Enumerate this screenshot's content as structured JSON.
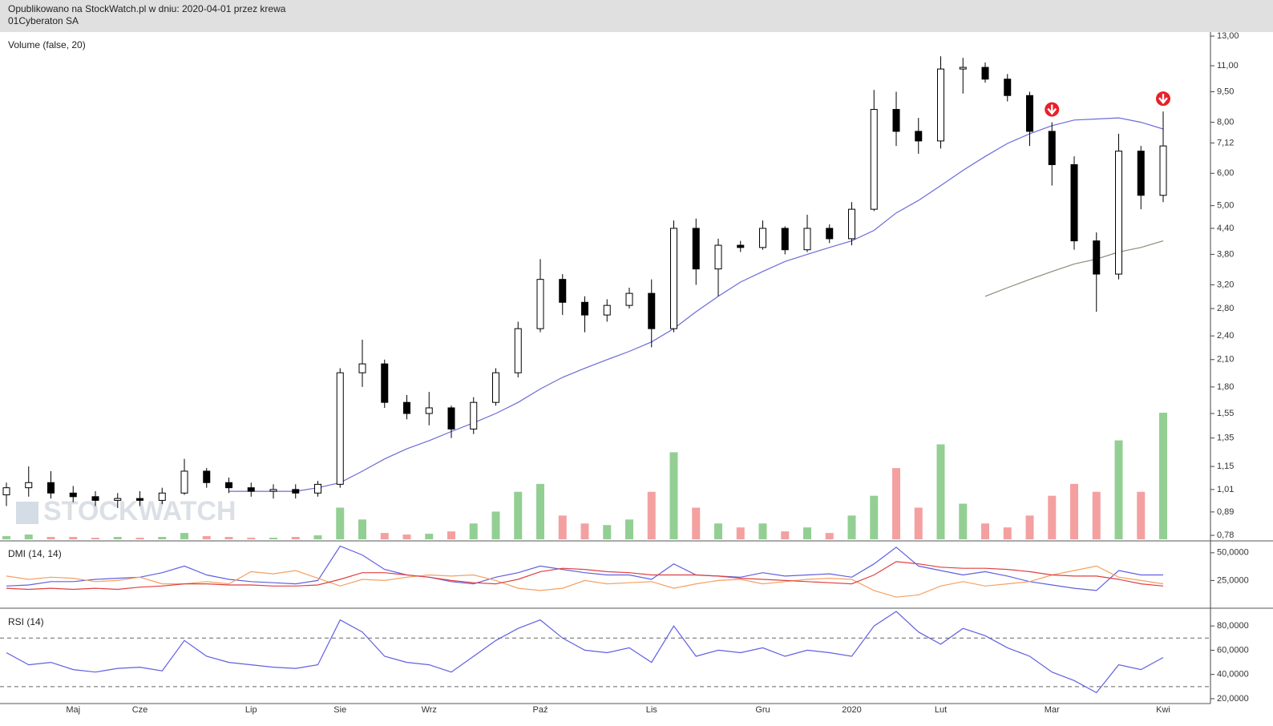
{
  "header": {
    "published": "Opublikowano na StockWatch.pl w dniu: 2020-04-01 przez krewa",
    "instrument": "01Cyberaton SA",
    "watermark": "STOCKWATCH"
  },
  "chart_data": [
    {
      "type": "candlestick",
      "title": "Volume (false, 20)",
      "categories": [
        null,
        null,
        null,
        "Maj",
        null,
        null,
        "Cze",
        null,
        null,
        null,
        null,
        "Lip",
        null,
        null,
        null,
        "Sie",
        null,
        null,
        null,
        "Wrz",
        null,
        null,
        null,
        null,
        "Paź",
        null,
        null,
        null,
        null,
        "Lis",
        null,
        null,
        null,
        null,
        "Gru",
        null,
        null,
        null,
        "2020",
        null,
        null,
        null,
        "Lut",
        null,
        null,
        null,
        null,
        "Mar",
        null,
        null,
        null,
        null,
        "Kwi"
      ],
      "open": [
        0.98,
        1.02,
        1.05,
        0.99,
        0.97,
        0.95,
        0.96,
        0.95,
        0.99,
        1.12,
        1.05,
        1.02,
        1.0,
        1.01,
        0.99,
        1.04,
        1.95,
        2.05,
        1.65,
        1.55,
        1.6,
        1.42,
        1.65,
        1.95,
        2.5,
        3.3,
        2.9,
        2.7,
        2.85,
        3.05,
        2.5,
        4.4,
        3.5,
        4.0,
        3.95,
        4.4,
        3.9,
        4.4,
        4.15,
        4.9,
        8.6,
        7.6,
        7.2,
        10.8,
        10.9,
        10.2,
        9.3,
        7.6,
        6.3,
        4.1,
        3.4,
        6.8,
        5.3
      ],
      "high": [
        1.05,
        1.15,
        1.12,
        1.03,
        1.0,
        0.99,
        1.0,
        1.02,
        1.2,
        1.14,
        1.08,
        1.05,
        1.04,
        1.04,
        1.06,
        2.0,
        2.35,
        2.1,
        1.72,
        1.75,
        1.62,
        1.7,
        2.0,
        2.6,
        3.7,
        3.4,
        3.0,
        2.95,
        3.15,
        3.3,
        4.6,
        4.65,
        4.15,
        4.1,
        4.6,
        4.45,
        4.75,
        4.5,
        5.1,
        9.6,
        9.5,
        8.2,
        11.6,
        11.5,
        11.2,
        10.5,
        9.5,
        8.0,
        6.6,
        4.3,
        7.5,
        7.0,
        8.5
      ],
      "low": [
        0.92,
        0.97,
        0.96,
        0.94,
        0.92,
        0.91,
        0.92,
        0.93,
        0.98,
        1.02,
        0.99,
        0.97,
        0.96,
        0.96,
        0.97,
        1.02,
        1.8,
        1.6,
        1.5,
        1.45,
        1.35,
        1.38,
        1.62,
        1.9,
        2.45,
        2.7,
        2.45,
        2.6,
        2.8,
        2.25,
        2.45,
        3.2,
        3.0,
        3.85,
        3.9,
        3.8,
        3.85,
        4.05,
        4.0,
        4.85,
        7.0,
        6.7,
        6.9,
        9.4,
        10.0,
        9.0,
        7.0,
        5.6,
        3.9,
        2.75,
        3.3,
        4.9,
        5.1
      ],
      "close": [
        1.02,
        1.05,
        0.99,
        0.97,
        0.95,
        0.96,
        0.95,
        0.99,
        1.12,
        1.05,
        1.02,
        1.0,
        1.01,
        0.99,
        1.04,
        1.95,
        2.05,
        1.65,
        1.55,
        1.6,
        1.42,
        1.65,
        1.95,
        2.5,
        3.3,
        2.9,
        2.7,
        2.85,
        3.05,
        2.5,
        4.4,
        3.5,
        4.0,
        3.95,
        4.4,
        3.9,
        4.4,
        4.15,
        4.9,
        8.6,
        7.6,
        7.2,
        10.8,
        10.9,
        10.2,
        9.3,
        7.6,
        6.3,
        4.1,
        3.4,
        6.8,
        5.3,
        7.0
      ],
      "up_color": "#ffffff",
      "down_color": "#000000",
      "volume": {
        "values": [
          4,
          6,
          3,
          3,
          2,
          3,
          2,
          3,
          8,
          4,
          3,
          2,
          2,
          3,
          5,
          40,
          25,
          8,
          6,
          7,
          10,
          20,
          35,
          60,
          70,
          30,
          20,
          18,
          25,
          60,
          110,
          40,
          20,
          15,
          20,
          10,
          15,
          8,
          30,
          55,
          90,
          40,
          120,
          45,
          20,
          15,
          30,
          55,
          70,
          60,
          125,
          60,
          160
        ],
        "up_color": "#93cf93",
        "down_color": "#f4a0a0"
      },
      "overlays": [
        {
          "color": "#6b6bd9",
          "values": [
            null,
            null,
            null,
            null,
            null,
            null,
            null,
            null,
            null,
            null,
            1.0,
            1.0,
            1.0,
            1.0,
            1.02,
            1.05,
            1.12,
            1.2,
            1.27,
            1.33,
            1.4,
            1.47,
            1.55,
            1.65,
            1.78,
            1.9,
            2.0,
            2.1,
            2.2,
            2.32,
            2.5,
            2.75,
            3.0,
            3.25,
            3.45,
            3.65,
            3.8,
            3.95,
            4.1,
            4.35,
            4.8,
            5.15,
            5.6,
            6.1,
            6.6,
            7.1,
            7.5,
            7.85,
            8.1,
            8.15,
            8.2,
            8.0,
            7.7
          ]
        },
        {
          "color": "#8a8a7a",
          "values": [
            null,
            null,
            null,
            null,
            null,
            null,
            null,
            null,
            null,
            null,
            null,
            null,
            null,
            null,
            null,
            null,
            null,
            null,
            null,
            null,
            null,
            null,
            null,
            null,
            null,
            null,
            null,
            null,
            null,
            null,
            null,
            null,
            null,
            null,
            null,
            null,
            null,
            null,
            null,
            null,
            null,
            null,
            null,
            null,
            3.0,
            3.15,
            3.3,
            3.45,
            3.6,
            3.7,
            3.85,
            3.95,
            4.1
          ]
        }
      ],
      "signals": {
        "x_index": [
          47,
          52
        ],
        "color": "#e8202a"
      },
      "log_scale": true,
      "ylim": [
        0.756,
        13.3
      ],
      "yticks": [
        {
          "value": 13,
          "label": "13,00"
        },
        {
          "value": 11,
          "label": "11,00"
        },
        {
          "value": 9.5,
          "label": "9,50"
        },
        {
          "value": 8,
          "label": "8,00"
        },
        {
          "value": 7.12,
          "label": "7,12"
        },
        {
          "value": 6,
          "label": "6,00"
        },
        {
          "value": 5,
          "label": "5,00"
        },
        {
          "value": 4.4,
          "label": "4,40"
        },
        {
          "value": 3.8,
          "label": "3,80"
        },
        {
          "value": 3.2,
          "label": "3,20"
        },
        {
          "value": 2.8,
          "label": "2,80"
        },
        {
          "value": 2.4,
          "label": "2,40"
        },
        {
          "value": 2.1,
          "label": "2,10"
        },
        {
          "value": 1.8,
          "label": "1,80"
        },
        {
          "value": 1.55,
          "label": "1,55"
        },
        {
          "value": 1.35,
          "label": "1,35"
        },
        {
          "value": 1.15,
          "label": "1,15"
        },
        {
          "value": 1.01,
          "label": "1,01"
        },
        {
          "value": 0.89,
          "label": "0,89"
        },
        {
          "value": 0.78,
          "label": "0,78"
        }
      ]
    },
    {
      "type": "line",
      "title": "DMI (14, 14)",
      "series": [
        {
          "color": "#6060e0",
          "values": [
            20,
            21,
            24,
            24,
            26,
            27,
            28,
            32,
            38,
            30,
            26,
            24,
            23,
            22,
            25,
            56,
            48,
            35,
            30,
            28,
            24,
            22,
            28,
            32,
            38,
            35,
            32,
            30,
            30,
            26,
            40,
            30,
            29,
            28,
            32,
            29,
            30,
            31,
            28,
            40,
            55,
            38,
            34,
            30,
            33,
            29,
            24,
            21,
            18,
            16,
            34,
            30,
            30
          ]
        },
        {
          "color": "#f5a060",
          "values": [
            29,
            26,
            28,
            27,
            24,
            25,
            28,
            22,
            22,
            24,
            22,
            33,
            31,
            34,
            27,
            20,
            26,
            25,
            28,
            30,
            29,
            30,
            25,
            18,
            16,
            18,
            25,
            22,
            23,
            24,
            18,
            22,
            25,
            26,
            22,
            24,
            26,
            27,
            26,
            16,
            10,
            12,
            20,
            24,
            20,
            22,
            24,
            30,
            34,
            38,
            28,
            25,
            22
          ]
        },
        {
          "color": "#e04040",
          "values": [
            18,
            17,
            18,
            17,
            18,
            17,
            19,
            20,
            22,
            22,
            21,
            21,
            20,
            20,
            21,
            26,
            32,
            32,
            30,
            28,
            25,
            23,
            22,
            26,
            33,
            36,
            35,
            33,
            32,
            30,
            30,
            30,
            29,
            27,
            26,
            25,
            24,
            23,
            22,
            30,
            42,
            40,
            37,
            36,
            36,
            35,
            33,
            30,
            29,
            29,
            26,
            22,
            20
          ]
        }
      ],
      "ylim": [
        0,
        60
      ],
      "yticks": [
        {
          "value": 50,
          "label": "50,0000"
        },
        {
          "value": 25,
          "label": "25,0000"
        }
      ]
    },
    {
      "type": "line",
      "title": "RSI (14)",
      "series": [
        {
          "color": "#6060e0",
          "values": [
            58,
            48,
            50,
            44,
            42,
            45,
            46,
            43,
            68,
            55,
            50,
            48,
            46,
            45,
            48,
            85,
            75,
            55,
            50,
            48,
            42,
            55,
            68,
            78,
            85,
            70,
            60,
            58,
            62,
            50,
            80,
            55,
            60,
            58,
            62,
            55,
            60,
            58,
            55,
            80,
            92,
            75,
            65,
            78,
            72,
            62,
            55,
            42,
            35,
            25,
            48,
            44,
            54
          ]
        }
      ],
      "hlines": [
        70,
        30
      ],
      "ylim": [
        16,
        94
      ],
      "yticks": [
        {
          "value": 80,
          "label": "80,0000"
        },
        {
          "value": 60,
          "label": "60,0000"
        },
        {
          "value": 40,
          "label": "40,0000"
        },
        {
          "value": 20,
          "label": "20,0000"
        }
      ]
    }
  ]
}
